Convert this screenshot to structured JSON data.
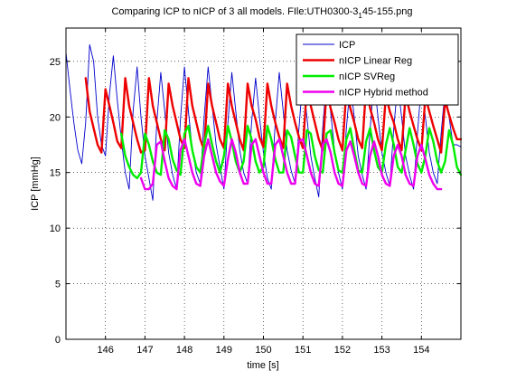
{
  "chart_data": {
    "type": "line",
    "title": "Comparing ICP to nICP of 3 all models. FIle:UTH0300-3_1 45-155.png",
    "title_main": "Comparing ICP to nICP of 3 all models. FIle:UTH0300-3",
    "title_subscript": "1",
    "title_tail": "45-155.png",
    "xlabel": "time [s]",
    "ylabel": "ICP [mmHg]",
    "xlim": [
      145,
      155
    ],
    "ylim": [
      0,
      28
    ],
    "x_ticks": [
      146,
      147,
      148,
      149,
      150,
      151,
      152,
      153,
      154
    ],
    "y_ticks": [
      0,
      5,
      10,
      15,
      20,
      25
    ],
    "grid": "dotted",
    "legend_position": "top-right",
    "series": [
      {
        "name": "ICP",
        "color": "#0000cc",
        "style": "thin",
        "x": [
          145.0,
          145.1,
          145.2,
          145.3,
          145.4,
          145.5,
          145.6,
          145.7,
          145.8,
          145.9,
          146.0,
          146.1,
          146.2,
          146.3,
          146.4,
          146.5,
          146.6,
          146.7,
          146.8,
          146.9,
          147.0,
          147.1,
          147.2,
          147.3,
          147.4,
          147.5,
          147.6,
          147.7,
          147.8,
          147.9,
          148.0,
          148.1,
          148.2,
          148.3,
          148.4,
          148.5,
          148.6,
          148.7,
          148.8,
          148.9,
          149.0,
          149.1,
          149.2,
          149.3,
          149.4,
          149.5,
          149.6,
          149.7,
          149.8,
          149.9,
          150.0,
          150.1,
          150.2,
          150.3,
          150.4,
          150.5,
          150.6,
          150.7,
          150.8,
          150.9,
          151.0,
          151.1,
          151.2,
          151.3,
          151.4,
          151.5,
          151.6,
          151.7,
          151.8,
          151.9,
          152.0,
          152.1,
          152.2,
          152.3,
          152.4,
          152.5,
          152.6,
          152.7,
          152.8,
          152.9,
          153.0,
          153.1,
          153.2,
          153.3,
          153.4,
          153.5,
          153.6,
          153.7,
          153.8,
          153.9,
          154.0,
          154.1,
          154.2,
          154.3,
          154.4,
          154.5,
          154.6,
          154.7,
          154.8,
          154.9,
          155.0
        ],
        "values": [
          25.8,
          22.5,
          19.5,
          17.0,
          15.8,
          19.5,
          26.5,
          25.0,
          20.0,
          17.5,
          16.5,
          22.0,
          25.5,
          21.5,
          18.0,
          15.0,
          13.5,
          20.5,
          24.5,
          20.0,
          16.5,
          14.5,
          12.5,
          19.5,
          24.0,
          20.5,
          16.8,
          14.8,
          13.5,
          19.8,
          24.5,
          20.5,
          17.0,
          15.0,
          14.0,
          20.0,
          24.5,
          21.0,
          17.5,
          15.5,
          13.5,
          19.5,
          24.0,
          20.5,
          17.0,
          15.0,
          14.0,
          19.5,
          23.5,
          20.0,
          16.8,
          14.5,
          13.5,
          19.5,
          24.0,
          20.5,
          17.0,
          15.2,
          14.0,
          19.0,
          23.5,
          20.0,
          16.5,
          14.5,
          12.8,
          19.0,
          23.5,
          20.5,
          17.0,
          15.0,
          13.5,
          19.0,
          23.0,
          20.0,
          16.5,
          14.8,
          13.5,
          18.8,
          23.5,
          20.0,
          16.8,
          15.0,
          13.8,
          19.0,
          23.0,
          20.0,
          16.5,
          14.8,
          13.5,
          18.5,
          23.0,
          20.0,
          16.8,
          15.0,
          14.0,
          18.5,
          22.5,
          20.0,
          17.5,
          17.5,
          17.3
        ]
      },
      {
        "name": "nICP Linear Reg",
        "color": "#ee0000",
        "style": "thick",
        "x": [
          145.5,
          145.6,
          145.7,
          145.8,
          145.9,
          146.0,
          146.1,
          146.2,
          146.3,
          146.4,
          146.5,
          146.6,
          146.7,
          146.8,
          146.9,
          147.0,
          147.1,
          147.2,
          147.3,
          147.4,
          147.5,
          147.6,
          147.7,
          147.8,
          147.9,
          148.0,
          148.1,
          148.2,
          148.3,
          148.4,
          148.5,
          148.6,
          148.7,
          148.8,
          148.9,
          149.0,
          149.1,
          149.2,
          149.3,
          149.4,
          149.5,
          149.6,
          149.7,
          149.8,
          149.9,
          150.0,
          150.1,
          150.2,
          150.3,
          150.4,
          150.5,
          150.6,
          150.7,
          150.8,
          150.9,
          151.0,
          151.1,
          151.2,
          151.3,
          151.4,
          151.5,
          151.6,
          151.7,
          151.8,
          151.9,
          152.0,
          152.1,
          152.2,
          152.3,
          152.4,
          152.5,
          152.6,
          152.7,
          152.8,
          152.9,
          153.0,
          153.1,
          153.2,
          153.3,
          153.4,
          153.5,
          153.6,
          153.7,
          153.8,
          153.9,
          154.0,
          154.1,
          154.2,
          154.3,
          154.4,
          154.5,
          154.6,
          154.7,
          154.8,
          154.9,
          155.0
        ],
        "values": [
          23.5,
          20.5,
          19.0,
          17.5,
          16.8,
          22.5,
          21.0,
          19.5,
          17.8,
          17.2,
          23.5,
          21.0,
          19.5,
          18.0,
          16.8,
          17.0,
          23.5,
          21.0,
          19.5,
          18.0,
          17.0,
          23.0,
          21.0,
          19.5,
          18.0,
          17.2,
          23.5,
          21.0,
          19.5,
          18.0,
          17.0,
          23.0,
          21.0,
          19.5,
          18.0,
          17.2,
          23.0,
          21.0,
          19.5,
          18.0,
          17.0,
          23.0,
          21.0,
          19.8,
          18.2,
          17.3,
          23.0,
          21.0,
          19.5,
          18.2,
          17.2,
          23.0,
          21.0,
          19.5,
          18.2,
          17.2,
          22.8,
          21.0,
          19.5,
          18.0,
          17.0,
          22.5,
          20.8,
          19.5,
          18.0,
          17.0,
          22.5,
          20.8,
          19.5,
          18.0,
          17.2,
          22.8,
          20.8,
          19.5,
          18.0,
          17.0,
          22.0,
          20.5,
          19.5,
          18.0,
          17.0,
          22.0,
          20.5,
          19.2,
          18.0,
          17.0,
          21.8,
          20.5,
          19.2,
          18.0,
          16.8,
          21.5,
          20.2,
          19.0,
          18.0,
          18.0
        ]
      },
      {
        "name": "nICP SVReg",
        "color": "#00ee00",
        "style": "thick",
        "x": [
          146.4,
          146.5,
          146.6,
          146.7,
          146.8,
          146.9,
          147.0,
          147.1,
          147.2,
          147.3,
          147.4,
          147.5,
          147.6,
          147.7,
          147.8,
          147.9,
          148.0,
          148.1,
          148.2,
          148.3,
          148.4,
          148.5,
          148.6,
          148.7,
          148.8,
          148.9,
          149.0,
          149.1,
          149.2,
          149.3,
          149.4,
          149.5,
          149.6,
          149.7,
          149.8,
          149.9,
          150.0,
          150.1,
          150.2,
          150.3,
          150.4,
          150.5,
          150.6,
          150.7,
          150.8,
          150.9,
          151.0,
          151.1,
          151.2,
          151.3,
          151.4,
          151.5,
          151.6,
          151.7,
          151.8,
          151.9,
          152.0,
          152.1,
          152.2,
          152.3,
          152.4,
          152.5,
          152.6,
          152.7,
          152.8,
          152.9,
          153.0,
          153.1,
          153.2,
          153.3,
          153.4,
          153.5,
          153.6,
          153.7,
          153.8,
          153.9,
          154.0,
          154.1,
          154.2,
          154.3,
          154.4,
          154.5,
          154.6,
          154.7,
          154.8,
          154.9,
          155.0
        ],
        "values": [
          18.5,
          16.5,
          15.5,
          14.8,
          14.5,
          15.0,
          18.5,
          17.5,
          16.0,
          15.0,
          14.8,
          18.8,
          18.0,
          16.2,
          15.2,
          14.8,
          18.5,
          19.2,
          17.0,
          15.5,
          15.0,
          17.5,
          19.2,
          17.5,
          16.0,
          15.0,
          16.5,
          19.2,
          17.8,
          16.0,
          15.0,
          16.0,
          19.2,
          18.0,
          16.0,
          15.0,
          15.5,
          19.2,
          18.0,
          16.2,
          15.0,
          15.0,
          18.8,
          18.2,
          16.5,
          15.0,
          15.0,
          18.8,
          18.5,
          16.5,
          15.2,
          15.0,
          18.5,
          18.8,
          16.8,
          15.2,
          15.0,
          18.0,
          19.0,
          17.0,
          15.2,
          15.0,
          17.8,
          19.0,
          17.0,
          15.5,
          15.0,
          17.5,
          19.0,
          17.5,
          15.5,
          15.0,
          17.0,
          19.0,
          17.5,
          15.8,
          15.0,
          16.5,
          19.0,
          17.8,
          16.0,
          15.0,
          16.0,
          18.8,
          17.5,
          15.5,
          14.8
        ]
      },
      {
        "name": "nICP Hybrid method",
        "color": "#ee00ee",
        "style": "thick",
        "x": [
          146.9,
          147.0,
          147.1,
          147.2,
          147.3,
          147.4,
          147.5,
          147.6,
          147.7,
          147.8,
          147.9,
          148.0,
          148.1,
          148.2,
          148.3,
          148.4,
          148.5,
          148.6,
          148.7,
          148.8,
          148.9,
          149.0,
          149.1,
          149.2,
          149.3,
          149.4,
          149.5,
          149.6,
          149.7,
          149.8,
          149.9,
          150.0,
          150.1,
          150.2,
          150.3,
          150.4,
          150.5,
          150.6,
          150.7,
          150.8,
          150.9,
          151.0,
          151.1,
          151.2,
          151.3,
          151.4,
          151.5,
          151.6,
          151.7,
          151.8,
          151.9,
          152.0,
          152.1,
          152.2,
          152.3,
          152.4,
          152.5,
          152.6,
          152.7,
          152.8,
          152.9,
          153.0,
          153.1,
          153.2,
          153.3,
          153.4,
          153.5,
          153.6,
          153.7,
          153.8,
          153.9,
          154.0,
          154.1,
          154.2,
          154.3,
          154.4,
          154.5
        ],
        "values": [
          14.5,
          13.5,
          13.5,
          14.0,
          17.5,
          17.8,
          16.0,
          14.5,
          13.8,
          13.5,
          17.0,
          18.0,
          16.5,
          15.0,
          14.0,
          13.8,
          16.5,
          18.0,
          16.5,
          15.0,
          14.2,
          13.8,
          16.2,
          18.0,
          16.8,
          15.0,
          14.0,
          14.0,
          17.5,
          18.0,
          16.5,
          15.0,
          14.0,
          14.0,
          17.5,
          18.0,
          16.5,
          15.0,
          14.0,
          14.0,
          17.8,
          18.0,
          16.5,
          15.0,
          14.0,
          13.8,
          17.5,
          18.0,
          16.8,
          15.0,
          14.0,
          13.8,
          17.0,
          17.8,
          16.5,
          15.0,
          14.0,
          13.8,
          16.5,
          17.8,
          16.5,
          14.8,
          14.0,
          13.8,
          16.5,
          17.5,
          16.5,
          14.8,
          14.0,
          13.8,
          16.5,
          17.5,
          16.2,
          14.8,
          14.0,
          13.5,
          13.5
        ]
      }
    ]
  }
}
